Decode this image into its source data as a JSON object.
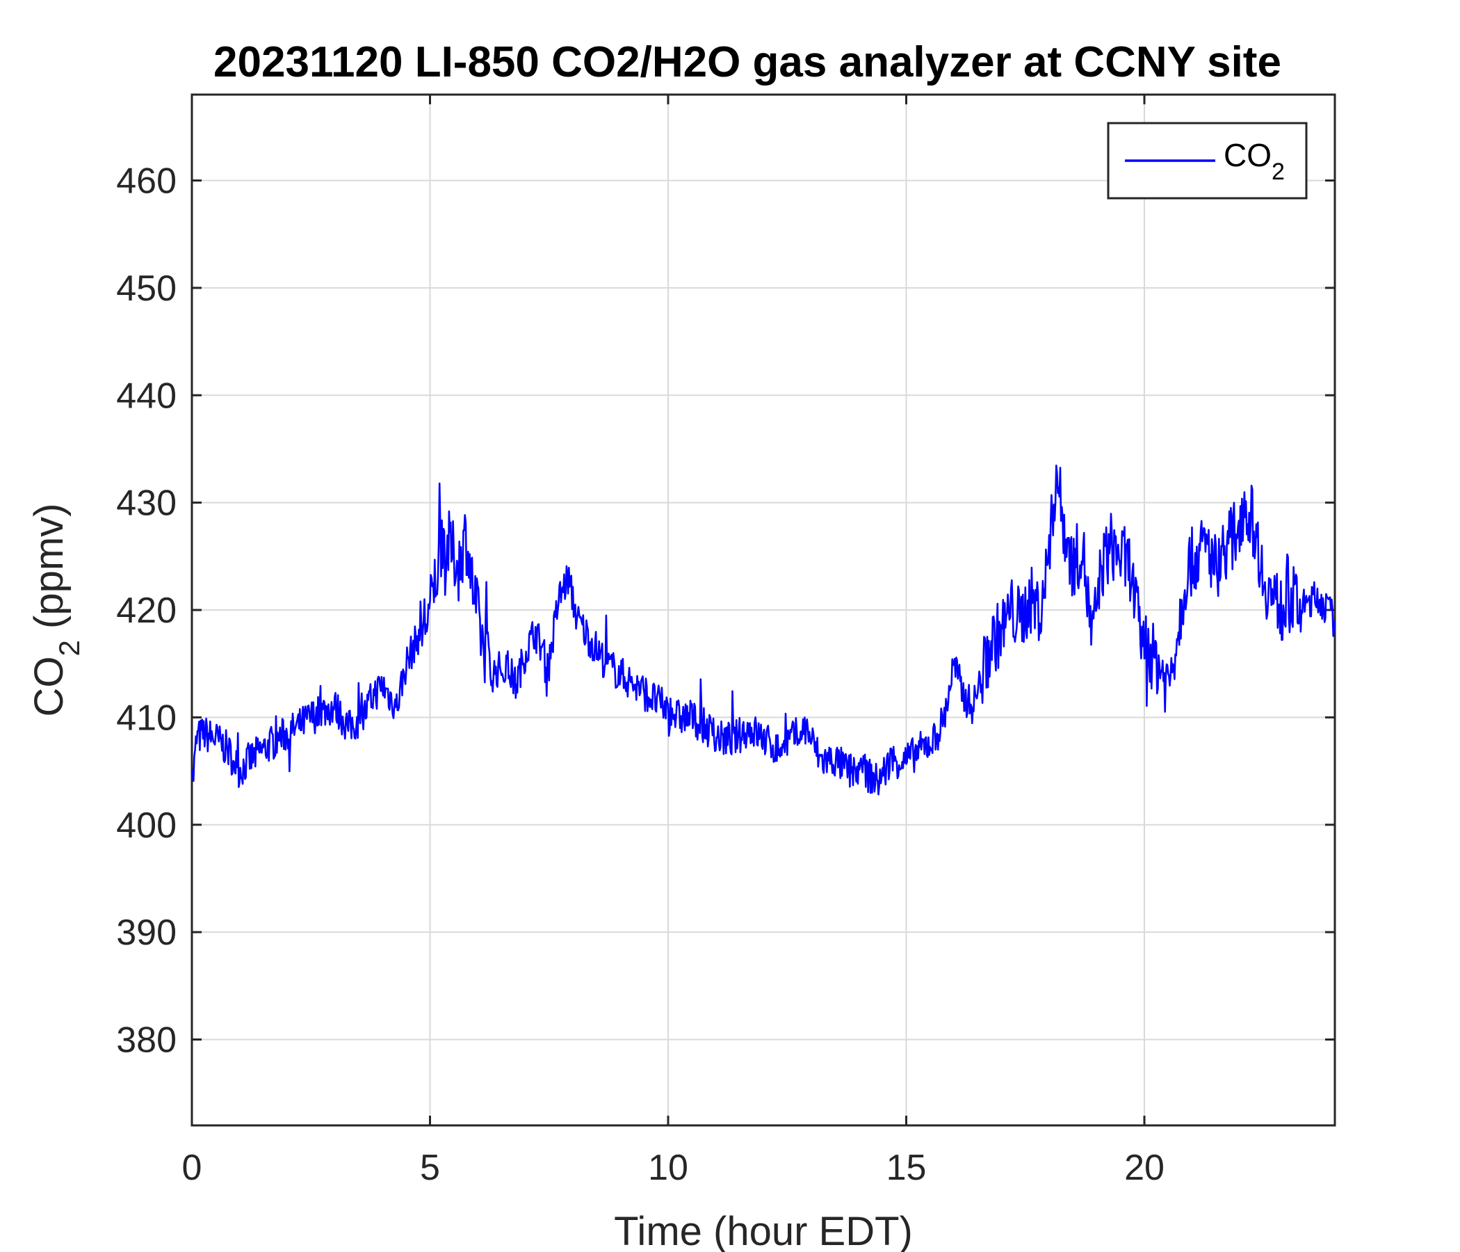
{
  "chart_data": {
    "type": "line",
    "title": "20231120 LI-850 CO2/H2O gas analyzer at CCNY site",
    "xlabel": "Time (hour EDT)",
    "ylabel_main": "CO",
    "ylabel_sub": "2",
    "ylabel_tail": " (ppmv)",
    "xlim": [
      0,
      24
    ],
    "ylim": [
      372,
      468
    ],
    "xticks": [
      0,
      5,
      10,
      15,
      20
    ],
    "yticks": [
      380,
      390,
      400,
      410,
      420,
      430,
      440,
      450,
      460
    ],
    "grid": true,
    "legend_placement": "top-right",
    "series": [
      {
        "name_main": "CO",
        "name_sub": "2",
        "color": "#0000ff",
        "x": [
          0,
          0.1,
          0.25,
          0.5,
          0.75,
          1.0,
          1.2,
          1.5,
          1.8,
          2.0,
          2.2,
          2.5,
          2.7,
          3.0,
          3.3,
          3.6,
          3.8,
          4.0,
          4.3,
          4.5,
          4.8,
          5.0,
          5.2,
          5.4,
          5.6,
          5.75,
          5.9,
          6.1,
          6.3,
          6.6,
          6.8,
          7.0,
          7.2,
          7.5,
          7.7,
          7.9,
          8.1,
          8.4,
          8.7,
          9.0,
          9.3,
          9.6,
          9.9,
          10.2,
          10.5,
          10.8,
          11.1,
          11.4,
          11.7,
          12.0,
          12.3,
          12.6,
          12.9,
          13.2,
          13.5,
          13.8,
          14.1,
          14.4,
          14.7,
          15.0,
          15.3,
          15.6,
          15.8,
          16.0,
          16.2,
          16.4,
          16.6,
          16.8,
          17.0,
          17.2,
          17.4,
          17.6,
          17.8,
          18.0,
          18.15,
          18.3,
          18.5,
          18.7,
          18.9,
          19.1,
          19.3,
          19.5,
          19.7,
          19.9,
          20.1,
          20.3,
          20.5,
          20.7,
          20.9,
          21.1,
          21.3,
          21.5,
          21.7,
          21.9,
          22.1,
          22.3,
          22.5,
          22.7,
          22.9,
          23.1,
          23.3,
          23.5,
          23.7,
          24.0
        ],
        "y": [
          403,
          408,
          408.5,
          408,
          407,
          405,
          406,
          407,
          408,
          408.5,
          409,
          410,
          410.5,
          411,
          409,
          410,
          412,
          413,
          411,
          415,
          418,
          420,
          425,
          426,
          424,
          427,
          422,
          417,
          414,
          415,
          413,
          416,
          418,
          415,
          421,
          423,
          419,
          417,
          415,
          414,
          413,
          412,
          411,
          410,
          410,
          409,
          408,
          408,
          409,
          408,
          407,
          408,
          409,
          406,
          406,
          405,
          405,
          404,
          406,
          406,
          407,
          408,
          410,
          415,
          412,
          411,
          414,
          417,
          418,
          420,
          419,
          421,
          420,
          425,
          433,
          428,
          424,
          426,
          417,
          424,
          426,
          425,
          424,
          418,
          416,
          415,
          413,
          418,
          424,
          425,
          426,
          424,
          426,
          427,
          430,
          428,
          423,
          421,
          420,
          421,
          420,
          421,
          421,
          419
        ]
      }
    ]
  }
}
